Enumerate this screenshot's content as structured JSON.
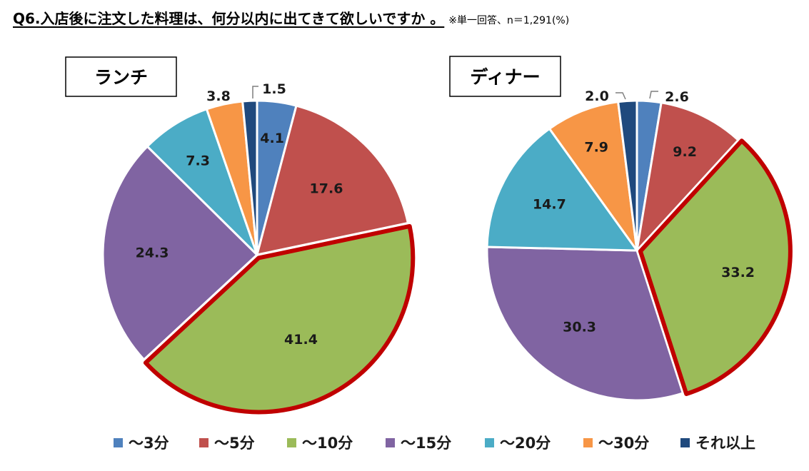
{
  "title": {
    "main": "Q6.入店後に注文した料理は、何分以内に出てきて欲しいですか 。",
    "note": "※単一回答、n＝1,291(%)"
  },
  "legend": [
    {
      "label": "～3分",
      "color": "#4f81bd"
    },
    {
      "label": "～5分",
      "color": "#c0504d"
    },
    {
      "label": "～10分",
      "color": "#9bbb59"
    },
    {
      "label": "～15分",
      "color": "#8064a2"
    },
    {
      "label": "～20分",
      "color": "#4bacc6"
    },
    {
      "label": "～30分",
      "color": "#f79646"
    },
    {
      "label": "それ以上",
      "color": "#1f497d"
    }
  ],
  "highlight_color": "#c00000",
  "chart_data": [
    {
      "type": "pie",
      "title": "ランチ",
      "categories": [
        "～3分",
        "～5分",
        "～10分",
        "～15分",
        "～20分",
        "～30分",
        "それ以上"
      ],
      "values": [
        4.1,
        17.6,
        41.4,
        24.3,
        7.3,
        3.8,
        1.5
      ],
      "highlighted": "～10分"
    },
    {
      "type": "pie",
      "title": "ディナー",
      "categories": [
        "～3分",
        "～5分",
        "～10分",
        "～15分",
        "～20分",
        "～30分",
        "それ以上"
      ],
      "values": [
        2.6,
        9.2,
        33.2,
        30.3,
        14.7,
        7.9,
        2.0
      ],
      "highlighted": "～10分"
    }
  ]
}
